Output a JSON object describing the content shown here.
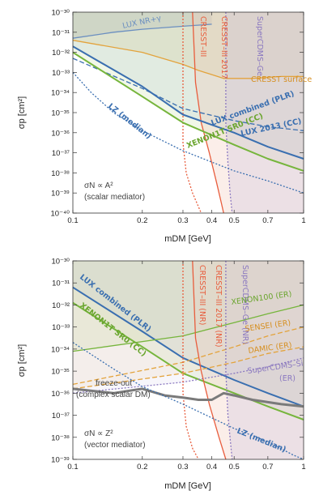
{
  "chart_data": [
    {
      "type": "line",
      "xlabel": "m_DM [GeV]",
      "ylabel": "σ_p [cm²]",
      "x_scale": "log",
      "y_scale": "log",
      "xlim": [
        0.1,
        1
      ],
      "ylim": [
        1e-40,
        1e-30
      ],
      "x_ticks": [
        "0.1",
        "0.2",
        "0.3",
        "0.4",
        "0.5",
        "0.7",
        "1"
      ],
      "y_ticks": [
        "10⁻⁴⁰",
        "10⁻³⁹",
        "10⁻³⁸",
        "10⁻³⁷",
        "10⁻³⁶",
        "10⁻³⁵",
        "10⁻³⁴",
        "10⁻³³",
        "10⁻³²",
        "10⁻³¹",
        "10⁻³⁰"
      ],
      "annotation": [
        "σ_N ∝ A²",
        "(scalar mediator)"
      ],
      "series": [
        {
          "name": "LUX NR+γ",
          "color": "#6b8fc0",
          "style": "solid",
          "points": [
            [
              0.1,
              -31.3
            ],
            [
              0.15,
              -31.0
            ],
            [
              0.2,
              -30.85
            ],
            [
              0.3,
              -30.7
            ],
            [
              0.4,
              -30.6
            ]
          ]
        },
        {
          "name": "CRESST surface",
          "color": "#e3a33c",
          "style": "solid",
          "points": [
            [
              0.1,
              -31.4
            ],
            [
              0.2,
              -32.0
            ],
            [
              0.3,
              -32.6
            ],
            [
              0.35,
              -32.9
            ],
            [
              0.45,
              -33.3
            ],
            [
              0.6,
              -33.3
            ],
            [
              0.8,
              -33.2
            ],
            [
              1.0,
              -33.2
            ]
          ]
        },
        {
          "name": "CRESST–III",
          "color": "#e85d3d",
          "style": "dotted",
          "points": [
            [
              0.3,
              -30.0
            ],
            [
              0.3,
              -36.5
            ],
            [
              0.31,
              -38.0
            ],
            [
              0.33,
              -39.0
            ],
            [
              0.36,
              -40.0
            ]
          ]
        },
        {
          "name": "CRESST–III 2017",
          "color": "#e85d3d",
          "style": "solid",
          "points": [
            [
              0.33,
              -30.0
            ],
            [
              0.34,
              -33.5
            ],
            [
              0.36,
              -35.5
            ],
            [
              0.39,
              -37.0
            ],
            [
              0.42,
              -38.5
            ],
            [
              0.44,
              -39.5
            ],
            [
              0.45,
              -40.0
            ]
          ]
        },
        {
          "name": "SuperCDMS–Ge",
          "color": "#8a78c0",
          "style": "dotted",
          "points": [
            [
              0.46,
              -30.0
            ],
            [
              0.46,
              -35.5
            ],
            [
              0.47,
              -37.5
            ],
            [
              0.48,
              -39.0
            ],
            [
              0.49,
              -40.0
            ]
          ]
        },
        {
          "name": "LUX 2013 (CC)",
          "color": "#3a6fb0",
          "style": "dashed",
          "points": [
            [
              0.1,
              -32.3
            ],
            [
              0.2,
              -33.8
            ],
            [
              0.3,
              -34.8
            ],
            [
              0.5,
              -35.4
            ],
            [
              0.7,
              -35.7
            ],
            [
              1.0,
              -35.9
            ]
          ]
        },
        {
          "name": "LUX combined (PLR)",
          "color": "#3a6fb0",
          "style": "solid",
          "points": [
            [
              0.1,
              -31.7
            ],
            [
              0.2,
              -33.7
            ],
            [
              0.3,
              -35.1
            ],
            [
              0.5,
              -36.0
            ],
            [
              0.7,
              -36.7
            ],
            [
              1.0,
              -37.3
            ]
          ]
        },
        {
          "name": "XENON1T SR0 (CC)",
          "color": "#76b53c",
          "style": "solid",
          "points": [
            [
              0.1,
              -32.0
            ],
            [
              0.2,
              -34.2
            ],
            [
              0.3,
              -35.5
            ],
            [
              0.5,
              -36.6
            ],
            [
              0.7,
              -37.3
            ],
            [
              1.0,
              -37.9
            ]
          ]
        },
        {
          "name": "LZ (median)",
          "color": "#3a6fb0",
          "style": "dotted",
          "points": [
            [
              0.1,
              -33.0
            ],
            [
              0.12,
              -34.0
            ],
            [
              0.15,
              -35.0
            ],
            [
              0.2,
              -35.9
            ],
            [
              0.3,
              -36.9
            ],
            [
              0.5,
              -37.9
            ],
            [
              0.7,
              -38.4
            ],
            [
              1.0,
              -39.0
            ]
          ]
        }
      ]
    },
    {
      "type": "line",
      "xlabel": "m_DM [GeV]",
      "ylabel": "σ_p [cm²]",
      "x_scale": "log",
      "y_scale": "log",
      "xlim": [
        0.1,
        1
      ],
      "ylim": [
        1e-39,
        1e-30
      ],
      "x_ticks": [
        "0.1",
        "0.2",
        "0.3",
        "0.4",
        "0.5",
        "0.7",
        "1"
      ],
      "y_ticks": [
        "10⁻³⁹",
        "10⁻³⁸",
        "10⁻³⁷",
        "10⁻³⁶",
        "10⁻³⁵",
        "10⁻³⁴",
        "10⁻³³",
        "10⁻³²",
        "10⁻³¹",
        "10⁻³⁰"
      ],
      "annotation": [
        "σ_N ∝ Z²",
        "(vector mediator)"
      ],
      "series": [
        {
          "name": "LUX combined (PLR)",
          "color": "#3a6fb0",
          "style": "solid",
          "points": [
            [
              0.1,
              -31.2
            ],
            [
              0.2,
              -33.2
            ],
            [
              0.3,
              -34.4
            ],
            [
              0.5,
              -35.4
            ],
            [
              0.7,
              -36.0
            ],
            [
              1.0,
              -36.6
            ]
          ]
        },
        {
          "name": "XENON1T SR0 (CC)",
          "color": "#76b53c",
          "style": "solid",
          "points": [
            [
              0.1,
              -31.9
            ],
            [
              0.2,
              -33.9
            ],
            [
              0.3,
              -35.1
            ],
            [
              0.5,
              -36.0
            ],
            [
              0.7,
              -36.6
            ],
            [
              1.0,
              -37.2
            ]
          ]
        },
        {
          "name": "XENON100 (ER)",
          "color": "#76b53c",
          "style": "solid",
          "points": [
            [
              0.1,
              -34.1
            ],
            [
              0.3,
              -33.4
            ],
            [
              0.5,
              -32.8
            ],
            [
              0.7,
              -32.4
            ],
            [
              1.0,
              -32.0
            ]
          ]
        },
        {
          "name": "SENSEI (ER)",
          "color": "#e3a33c",
          "style": "dashed",
          "points": [
            [
              0.1,
              -35.6
            ],
            [
              0.3,
              -34.6
            ],
            [
              0.5,
              -33.9
            ],
            [
              0.7,
              -33.4
            ],
            [
              1.0,
              -33.0
            ]
          ]
        },
        {
          "name": "DAMIC (ER)",
          "color": "#e3a33c",
          "style": "dashed",
          "points": [
            [
              0.1,
              -35.8
            ],
            [
              0.3,
              -35.1
            ],
            [
              0.5,
              -34.6
            ],
            [
              0.7,
              -34.2
            ],
            [
              1.0,
              -33.9
            ]
          ]
        },
        {
          "name": "SuperCDMS–Si (ER)",
          "color": "#8a78c0",
          "style": "dotted",
          "points": [
            [
              0.1,
              -36.0
            ],
            [
              0.3,
              -35.5
            ],
            [
              0.5,
              -35.1
            ],
            [
              0.7,
              -34.8
            ],
            [
              1.0,
              -34.4
            ]
          ]
        },
        {
          "name": "CRESST–III (NR)",
          "color": "#e85d3d",
          "style": "dotted",
          "points": [
            [
              0.3,
              -30.0
            ],
            [
              0.3,
              -36.0
            ],
            [
              0.31,
              -37.5
            ],
            [
              0.33,
              -38.5
            ],
            [
              0.35,
              -39.0
            ]
          ]
        },
        {
          "name": "CRESST–III 2017 (NR)",
          "color": "#e85d3d",
          "style": "solid",
          "points": [
            [
              0.33,
              -30.0
            ],
            [
              0.34,
              -33.5
            ],
            [
              0.36,
              -35.0
            ],
            [
              0.39,
              -36.5
            ],
            [
              0.43,
              -38.0
            ],
            [
              0.46,
              -39.0
            ]
          ]
        },
        {
          "name": "SuperCDMS–Ge (NR)",
          "color": "#8a78c0",
          "style": "dotted",
          "points": [
            [
              0.46,
              -30.0
            ],
            [
              0.46,
              -35.0
            ],
            [
              0.47,
              -37.0
            ],
            [
              0.49,
              -39.0
            ]
          ]
        },
        {
          "name": "freeze-out (complex scalar DM)",
          "color": "#7a7a7a",
          "style": "solid",
          "points": [
            [
              0.1,
              -35.8
            ],
            [
              0.15,
              -36.0
            ],
            [
              0.2,
              -35.8
            ],
            [
              0.25,
              -36.1
            ],
            [
              0.3,
              -36.2
            ],
            [
              0.35,
              -36.3
            ],
            [
              0.4,
              -36.3
            ],
            [
              0.45,
              -36.0
            ],
            [
              0.5,
              -36.1
            ],
            [
              0.6,
              -36.3
            ],
            [
              0.8,
              -36.5
            ],
            [
              1.0,
              -36.6
            ]
          ]
        },
        {
          "name": "LZ (median)",
          "color": "#3a6fb0",
          "style": "dotted",
          "points": [
            [
              0.1,
              -33.7
            ],
            [
              0.15,
              -34.9
            ],
            [
              0.2,
              -35.7
            ],
            [
              0.3,
              -36.5
            ],
            [
              0.5,
              -37.6
            ],
            [
              0.7,
              -38.2
            ],
            [
              0.9,
              -38.8
            ],
            [
              1.0,
              -39.0
            ]
          ]
        }
      ]
    }
  ],
  "labels": {
    "top": {
      "lux_nr": "LUX NR+γ",
      "cresst_surface": "CRESST surface",
      "cresst3": "CRESST–III",
      "cresst3_2017": "CRESST–III 2017",
      "supercdms_ge": "SuperCDMS–Ge",
      "lux2013": "LUX 2013 (CC)",
      "lux_comb": "LUX combined (PLR)",
      "xenon1t": "XENON1T SR0 (CC)",
      "lz": "LZ (median)",
      "note1": "σN ∝ A²",
      "note2": "(scalar mediator)"
    },
    "bottom": {
      "lux_comb": "LUX combined (PLR)",
      "xenon1t": "XENON1T SR0 (CC)",
      "cresst3": "CRESST–III (NR)",
      "cresst3_2017": "CRESST–III 2017 (NR)",
      "supercdms_ge": "SuperCDMS–Ge (NR)",
      "xenon100": "XENON100 (ER)",
      "sensei": "SENSEI (ER)",
      "damic": "DAMIC (ER)",
      "supercdms_si": "SuperCDMS–Si",
      "supercdms_si2": "(ER)",
      "freeze1": "freeze-out",
      "freeze2": "(complex scalar DM)",
      "lz": "LZ (median)",
      "note1": "σN ∝ Z²",
      "note2": "(vector mediator)"
    },
    "xlabel": "mDM [GeV]",
    "ylabel": "σp [cm²]"
  }
}
